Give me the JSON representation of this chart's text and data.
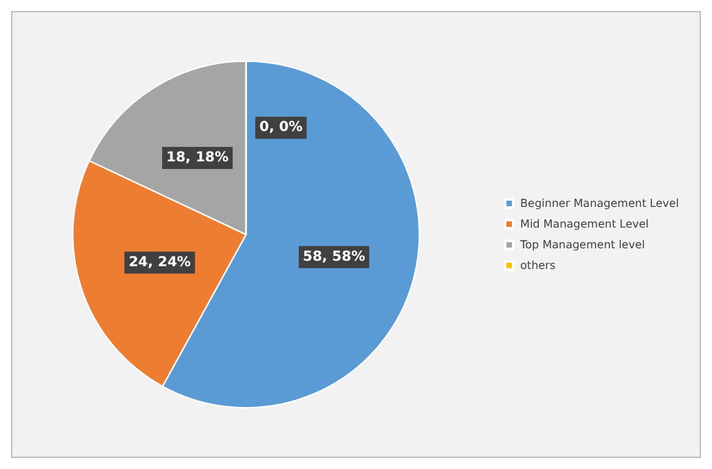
{
  "chart_data": {
    "type": "pie",
    "categories": [
      "Beginner Management Level",
      "Mid Management Level",
      "Top Management level",
      "others"
    ],
    "values": [
      58,
      24,
      18,
      0
    ],
    "colors": [
      "#5b9bd5",
      "#ed7d31",
      "#a5a5a5",
      "#ffc000"
    ],
    "value_labels": [
      "58, 58%",
      "24, 24%",
      "18, 18%",
      "0, 0%"
    ],
    "legend": "right"
  }
}
